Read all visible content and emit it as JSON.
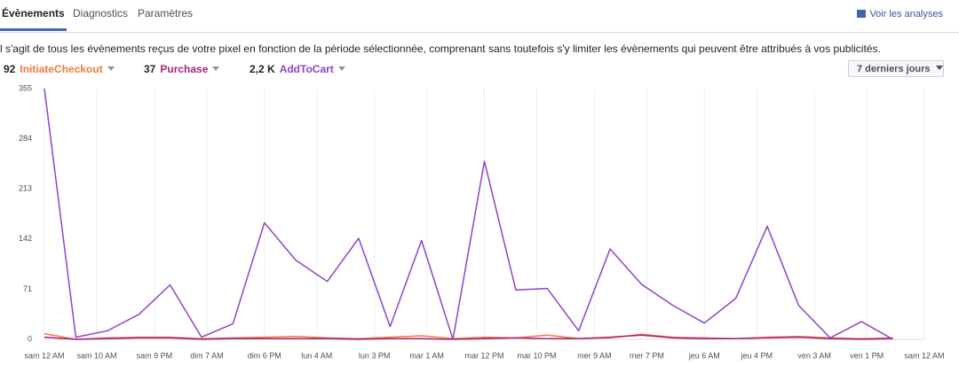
{
  "tabs": [
    "Évènements",
    "Diagnostics",
    "Paramètres"
  ],
  "link": "Voir les analyses",
  "description": "l s'agit de tous les évènements reçus de votre pixel en fonction de la période sélectionnée, comprenant sans toutefois s'y limiter les évènements qui peuvent être attribués à vos publicités.",
  "period": "7 derniers jours",
  "chart_data": {
    "type": "line",
    "x": [
      0,
      6,
      12,
      18,
      24,
      30,
      36,
      42,
      48,
      54,
      60,
      66,
      72,
      78,
      84,
      90,
      96,
      102,
      108,
      114,
      120,
      126,
      132,
      138,
      144,
      150,
      156,
      162
    ],
    "xlim": [
      0,
      168
    ],
    "xticks": [
      {
        "value": 0,
        "label": "sam 12 AM"
      },
      {
        "value": 10,
        "label": "sam 10 AM"
      },
      {
        "value": 21,
        "label": "sam 9 PM"
      },
      {
        "value": 31,
        "label": "dim 7 AM"
      },
      {
        "value": 42,
        "label": "dim 6 PM"
      },
      {
        "value": 52,
        "label": "lun 4 AM"
      },
      {
        "value": 63,
        "label": "lun 3 PM"
      },
      {
        "value": 73,
        "label": "mar 1 AM"
      },
      {
        "value": 84,
        "label": "mar 12 PM"
      },
      {
        "value": 94,
        "label": "mar 10 PM"
      },
      {
        "value": 105,
        "label": "mer 9 AM"
      },
      {
        "value": 115,
        "label": "mer 7 PM"
      },
      {
        "value": 126,
        "label": "jeu 6 AM"
      },
      {
        "value": 136,
        "label": "jeu 4 PM"
      },
      {
        "value": 147,
        "label": "ven 3 AM"
      },
      {
        "value": 157,
        "label": "ven 1 PM"
      },
      {
        "value": 168,
        "label": "sam 12 AM"
      }
    ],
    "ylim": [
      0,
      355
    ],
    "yticks": [
      0,
      71,
      142,
      213,
      284,
      355
    ],
    "grid": true,
    "series": [
      {
        "name": "InitiateCheckout",
        "total": 92,
        "color": "#f07b3f",
        "values": [
          8,
          0,
          2,
          3,
          3,
          1,
          2,
          3,
          4,
          2,
          1,
          3,
          5,
          1,
          3,
          2,
          6,
          1,
          2,
          7,
          3,
          2,
          1,
          3,
          4,
          2,
          1,
          2
        ]
      },
      {
        "name": "Purchase",
        "total": 37,
        "color": "#a6227a",
        "values": [
          3,
          0,
          1,
          2,
          2,
          0,
          1,
          1,
          1,
          1,
          0,
          1,
          1,
          0,
          1,
          2,
          1,
          1,
          3,
          6,
          2,
          1,
          1,
          2,
          3,
          1,
          0,
          1
        ]
      },
      {
        "name": "AddToCart",
        "total": {
          "value": 2200,
          "label": "2,2 K"
        },
        "color": "#8e44c8",
        "values": [
          355,
          3,
          12,
          35,
          77,
          3,
          22,
          165,
          112,
          82,
          143,
          18,
          140,
          0,
          252,
          70,
          72,
          12,
          128,
          78,
          48,
          23,
          58,
          160,
          48,
          2,
          25,
          0
        ]
      }
    ]
  }
}
